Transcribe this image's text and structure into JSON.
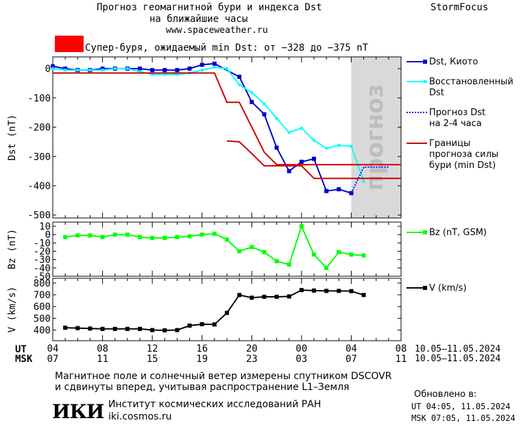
{
  "header": {
    "title_line1": "Прогноз геомагнитной бури и индекса Dst",
    "title_line2": "на ближайшие часы",
    "url": "www.spaceweather.ru",
    "brand": "StormFocus"
  },
  "alert": {
    "text": "Супер-буря, ожидаемый min Dst: от −328 до −375 nT",
    "color": "#ff0000"
  },
  "legend": {
    "dst_kyoto": "Dst, Киото",
    "dst_restored_1": "Восстановленный",
    "dst_restored_2": "Dst",
    "forecast_1": "Прогноз Dst",
    "forecast_2": "на 2-4 часа",
    "bounds_1": "Границы",
    "bounds_2": "прогноза силы",
    "bounds_3": "бури (min Dst)",
    "bz": "Bz (nT, GSM)",
    "v": "V (km/s)"
  },
  "forecast_band_label": "прогноз",
  "time_axis": {
    "ut_label": "UT",
    "msk_label": "MSK",
    "ut_ticks": [
      "04",
      "08",
      "12",
      "16",
      "20",
      "00",
      "04",
      "08"
    ],
    "msk_ticks": [
      "07",
      "11",
      "15",
      "19",
      "23",
      "03",
      "07",
      "11"
    ],
    "ut_range": "10.05–11.05.2024",
    "msk_range": "10.05–11.05.2024"
  },
  "footer": {
    "note1": "Магнитное поле и солнечный ветер измерены спутником DSCOVR",
    "note2": "и сдвинуты вперед, учитывая распространение L1–Земля",
    "logo": "ИКИ",
    "institute": "Институт космических исследований РАН",
    "site": "iki.cosmos.ru",
    "updated_label": "Обновлено в:",
    "updated_ut": "UT   04:05, 11.05.2024",
    "updated_msk": "MSK 07:05, 11.05.2024"
  },
  "chart_data": [
    {
      "type": "line",
      "ylabel": "Dst (nT)",
      "ylim": [
        -510,
        40
      ],
      "yticks": [
        0,
        -100,
        -200,
        -300,
        -400,
        -500
      ],
      "xlim_hours_ut": [
        4,
        32
      ],
      "forecast_region_hours_ut": [
        28,
        32
      ],
      "series": [
        {
          "name": "Dst, Киото",
          "color": "#0000cc",
          "x": [
            4,
            5,
            6,
            7,
            8,
            9,
            10,
            11,
            12,
            13,
            14,
            15,
            16,
            17,
            19,
            20,
            21,
            22,
            23,
            24,
            25,
            26,
            27,
            28
          ],
          "y": [
            8,
            0,
            -5,
            -5,
            0,
            0,
            0,
            0,
            -5,
            -5,
            -5,
            0,
            13,
            17,
            -28,
            -114,
            -156,
            -270,
            -350,
            -318,
            -308,
            -418,
            -412,
            -425
          ]
        },
        {
          "name": "Восстановленный Dst",
          "color": "#00ffff",
          "x": [
            4,
            5,
            6,
            7,
            8,
            9,
            10,
            11,
            12,
            13,
            14,
            15,
            16,
            17,
            18,
            19,
            20,
            21,
            22,
            23,
            24,
            25,
            26,
            27,
            28,
            29
          ],
          "y": [
            0,
            -5,
            -5,
            -5,
            -5,
            0,
            0,
            -10,
            -20,
            -20,
            -20,
            -15,
            -5,
            5,
            0,
            -55,
            -82,
            -120,
            -170,
            -218,
            -203,
            -245,
            -272,
            -262,
            -265,
            -385
          ]
        },
        {
          "name": "Прогноз Dst на 2-4 часа",
          "color": "#0000ff",
          "dashed": true,
          "x": [
            28,
            29,
            30,
            31
          ],
          "y": [
            -425,
            -336,
            -336,
            -336
          ]
        },
        {
          "name": "Границы прогноза силы бури (min Dst)",
          "color": "#cc0000",
          "x": [
            4,
            17,
            18,
            19,
            20,
            21,
            22,
            23,
            24,
            25,
            26,
            27,
            28,
            29,
            30,
            31,
            32
          ],
          "y": [
            -15,
            -15,
            -115,
            -115,
            -200,
            -285,
            -328,
            -328,
            -328,
            -328,
            -328,
            -328,
            -328,
            -328,
            -328,
            -328,
            -328
          ]
        },
        {
          "name": "Границы прогноза силы бури (min Dst) нижняя",
          "color": "#cc0000",
          "x": [
            18,
            19,
            20,
            21,
            22,
            23,
            24,
            25,
            26,
            27,
            28,
            29,
            30,
            31,
            32
          ],
          "y": [
            -247,
            -250,
            -290,
            -332,
            -332,
            -332,
            -332,
            -375,
            -375,
            -375,
            -375,
            -375,
            -375,
            -375,
            -375
          ]
        }
      ]
    },
    {
      "type": "line",
      "ylabel": "Bz (nT)",
      "ylim": [
        -50,
        15
      ],
      "yticks": [
        10,
        0,
        -10,
        -20,
        -30,
        -40,
        -50
      ],
      "series": [
        {
          "name": "Bz (nT, GSM)",
          "color": "#00ff00",
          "x": [
            5,
            6,
            7,
            8,
            9,
            10,
            11,
            12,
            13,
            14,
            15,
            16,
            17,
            18,
            19,
            20,
            21,
            22,
            23,
            24,
            25,
            26,
            27,
            28,
            29
          ],
          "y": [
            -3,
            -1,
            -1,
            -3,
            0,
            0,
            -3,
            -4,
            -4,
            -3,
            -2,
            0,
            1,
            -6,
            -20,
            -15,
            -21,
            -32,
            -36,
            10,
            -24,
            -40,
            -21,
            -24,
            -25
          ]
        }
      ]
    },
    {
      "type": "line",
      "ylabel": "V (km/s)",
      "ylim": [
        310,
        840
      ],
      "yticks": [
        800,
        700,
        600,
        500,
        400
      ],
      "series": [
        {
          "name": "V (km/s)",
          "color": "#000000",
          "x": [
            5,
            6,
            7,
            8,
            9,
            10,
            11,
            12,
            13,
            14,
            15,
            16,
            17,
            18,
            19,
            20,
            21,
            22,
            23,
            24,
            25,
            26,
            27,
            28,
            29
          ],
          "y": [
            420,
            417,
            413,
            410,
            410,
            410,
            410,
            400,
            398,
            400,
            438,
            450,
            448,
            546,
            698,
            675,
            683,
            683,
            686,
            740,
            736,
            733,
            733,
            731,
            698
          ]
        }
      ]
    }
  ]
}
